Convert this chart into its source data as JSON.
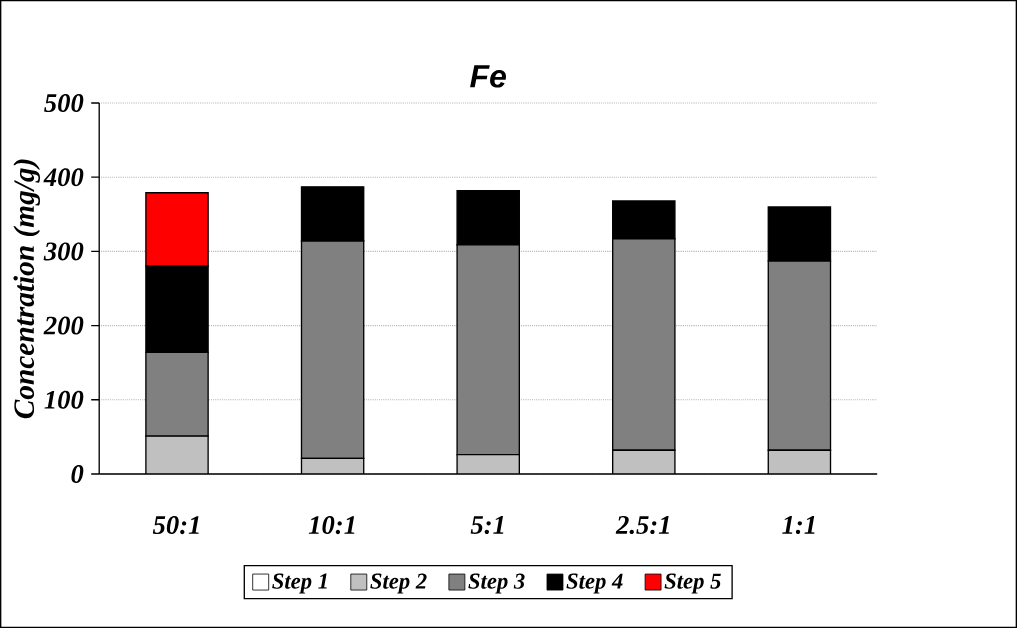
{
  "chart_data": {
    "type": "bar",
    "title": "Fe",
    "ylabel": "Concentration (mg/g)",
    "stacked": true,
    "categories": [
      "50:1",
      "10:1",
      "5:1",
      "2.5:1",
      "1:1"
    ],
    "series": [
      {
        "name": "Step 1",
        "color": "#ffffff",
        "values": [
          0,
          0,
          0,
          0,
          0
        ]
      },
      {
        "name": "Step 2",
        "color": "#c0c0c0",
        "values": [
          51,
          21,
          26,
          32,
          32
        ]
      },
      {
        "name": "Step 3",
        "color": "#808080",
        "values": [
          113,
          293,
          283,
          285,
          255
        ]
      },
      {
        "name": "Step 4",
        "color": "#000000",
        "values": [
          116,
          73,
          73,
          51,
          73
        ]
      },
      {
        "name": "Step 5",
        "color": "#ff0000",
        "values": [
          99,
          null,
          null,
          null,
          null
        ]
      }
    ],
    "ylim": [
      0,
      500
    ],
    "yticks": [
      0,
      100,
      200,
      300,
      400,
      500
    ],
    "grid": "y",
    "legend": "bottom"
  }
}
